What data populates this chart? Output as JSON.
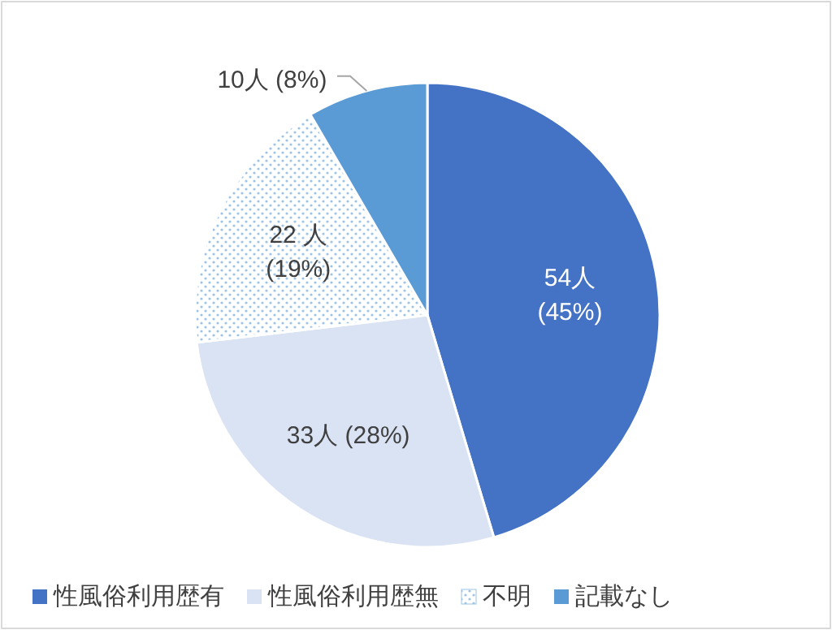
{
  "chart_data": {
    "type": "pie",
    "categories": [
      "性風俗利用歴有",
      "性風俗利用歴無",
      "不明",
      "記載なし"
    ],
    "values": [
      54,
      33,
      22,
      10
    ],
    "value_labels": [
      "54人\n(45%)",
      "33人 (28%)",
      "22 人\n(19%)",
      "10人 (8%)"
    ],
    "colors": [
      "#4472c4",
      "#dae3f3",
      "#ffffff",
      "#5b9bd5"
    ],
    "legend": "bottom"
  }
}
